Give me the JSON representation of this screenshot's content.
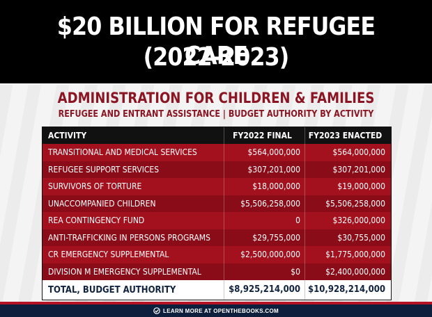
{
  "header": {
    "headline": "$20 BILLION FOR REFUGEE CARE",
    "years": "(2022-2023)"
  },
  "org": {
    "title": "ADMINISTRATION FOR CHILDREN & FAMILIES",
    "subtitle": "REFUGEE AND ENTRANT ASSISTANCE | BUDGET AUTHORITY BY ACTIVITY"
  },
  "table": {
    "columns": [
      "ACTIVITY",
      "FY2022 FINAL",
      "FY2023 ENACTED"
    ],
    "rows": [
      {
        "activity": "TRANSITIONAL AND MEDICAL SERVICES",
        "fy2022": "$564,000,000",
        "fy2023": "$564,000,000"
      },
      {
        "activity": "REFUGEE SUPPORT SERVICES",
        "fy2022": "$307,201,000",
        "fy2023": "$307,201,000"
      },
      {
        "activity": "SURVIVORS OF TORTURE",
        "fy2022": "$18,000,000",
        "fy2023": "$19,000,000"
      },
      {
        "activity": "UNACCOMPANIED CHILDREN",
        "fy2022": "$5,506,258,000",
        "fy2023": "$5,506,258,000"
      },
      {
        "activity": "REA CONTINGENCY FUND",
        "fy2022": "0",
        "fy2023": "$326,000,000"
      },
      {
        "activity": "ANTI-TRAFFICKING IN PERSONS PROGRAMS",
        "fy2022": "$29,755,000",
        "fy2023": "$30,755,000"
      },
      {
        "activity": "CR EMERGENCY SUPPLEMENTAL",
        "fy2022": "$2,500,000,000",
        "fy2023": "$1,775,000,000"
      },
      {
        "activity": "DIVISION M EMERGENCY SUPPLEMENTAL",
        "fy2022": "$0",
        "fy2023": "$2,400,000,000"
      }
    ],
    "total": {
      "activity": "TOTAL, BUDGET AUTHORITY",
      "fy2022": "$8,925,214,000",
      "fy2023": "$10,928,214,000"
    }
  },
  "footer": {
    "text": "LEARN MORE AT OPENTHEBOOKS.COM",
    "icon": "check-circle-icon"
  },
  "colors": {
    "header_band": "#000000",
    "accent_red": "#8c1523",
    "row_red_light": "#a3101e",
    "row_red_dark": "#8a0c18",
    "footer_navy": "#0e1f3d",
    "total_text": "#10233f"
  }
}
